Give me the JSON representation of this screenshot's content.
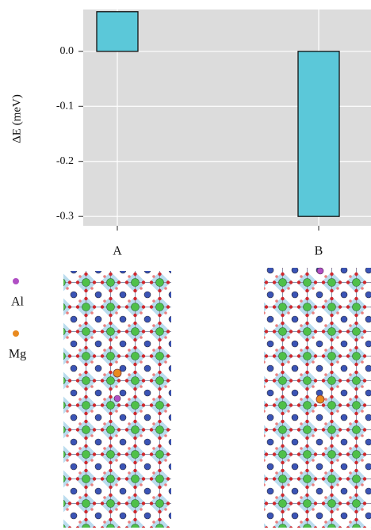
{
  "chart_data": {
    "type": "bar",
    "y_label": "ΔE (meV)",
    "categories": [
      "A",
      "B"
    ],
    "values": [
      0.072,
      -0.3
    ],
    "color": "#5bc8d9",
    "ylim": [
      -0.317,
      0.076
    ],
    "yticks": [
      {
        "value": 0,
        "label": "0.0"
      },
      -0.1,
      -0.2,
      -0.3
    ],
    "grid": true
  },
  "legend": {
    "items": [
      "Al",
      "Mg"
    ]
  }
}
